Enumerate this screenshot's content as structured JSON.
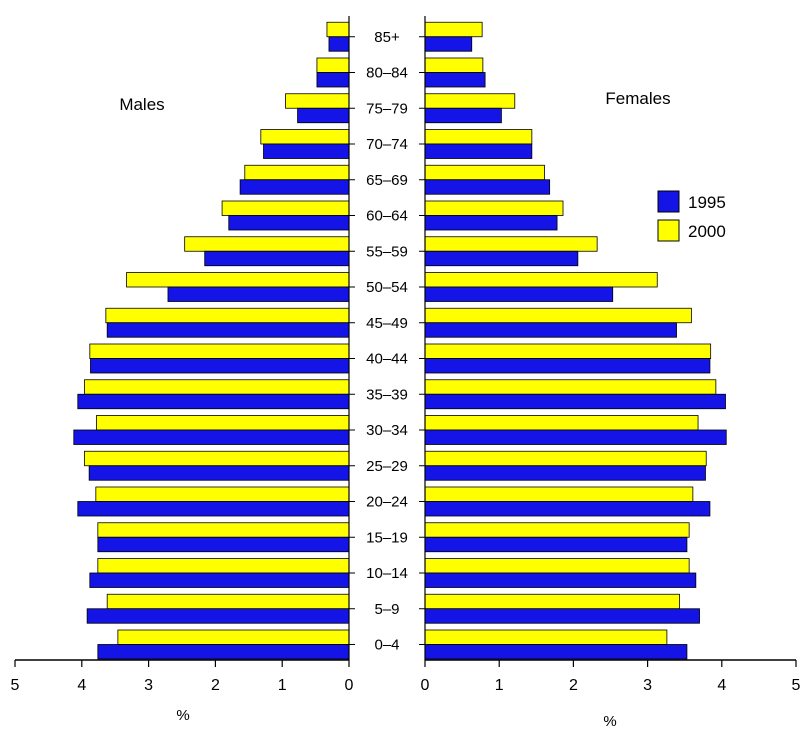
{
  "chart_data": {
    "type": "bar",
    "orientation": "horizontal",
    "layout": "population-pyramid",
    "left_label": "Males",
    "right_label": "Females",
    "x_unit_label": "%",
    "xlim": [
      0,
      5
    ],
    "x_ticks": [
      0,
      1,
      2,
      3,
      4,
      5
    ],
    "categories": [
      "0–4",
      "5–9",
      "10–14",
      "15–19",
      "20–24",
      "25–29",
      "30–34",
      "35–39",
      "40–44",
      "45–49",
      "50–54",
      "55–59",
      "60–64",
      "65–69",
      "70–74",
      "75–79",
      "80–84",
      "85+"
    ],
    "legend_position": "right, beside Females",
    "series": [
      {
        "name": "1995",
        "color": "#1414e6",
        "males": [
          3.76,
          3.92,
          3.88,
          3.76,
          4.06,
          3.89,
          4.12,
          4.06,
          3.87,
          3.62,
          2.71,
          2.16,
          1.8,
          1.63,
          1.28,
          0.77,
          0.48,
          0.3
        ],
        "females": [
          3.53,
          3.7,
          3.65,
          3.53,
          3.84,
          3.78,
          4.06,
          4.05,
          3.84,
          3.39,
          2.53,
          2.06,
          1.78,
          1.68,
          1.44,
          1.03,
          0.81,
          0.63
        ]
      },
      {
        "name": "2000",
        "color": "#ffff00",
        "males": [
          3.46,
          3.62,
          3.76,
          3.76,
          3.79,
          3.96,
          3.78,
          3.96,
          3.88,
          3.64,
          3.33,
          2.46,
          1.9,
          1.56,
          1.32,
          0.95,
          0.48,
          0.33
        ],
        "females": [
          3.26,
          3.43,
          3.56,
          3.56,
          3.61,
          3.79,
          3.68,
          3.92,
          3.85,
          3.59,
          3.13,
          2.32,
          1.86,
          1.61,
          1.44,
          1.21,
          0.78,
          0.77
        ]
      }
    ]
  }
}
